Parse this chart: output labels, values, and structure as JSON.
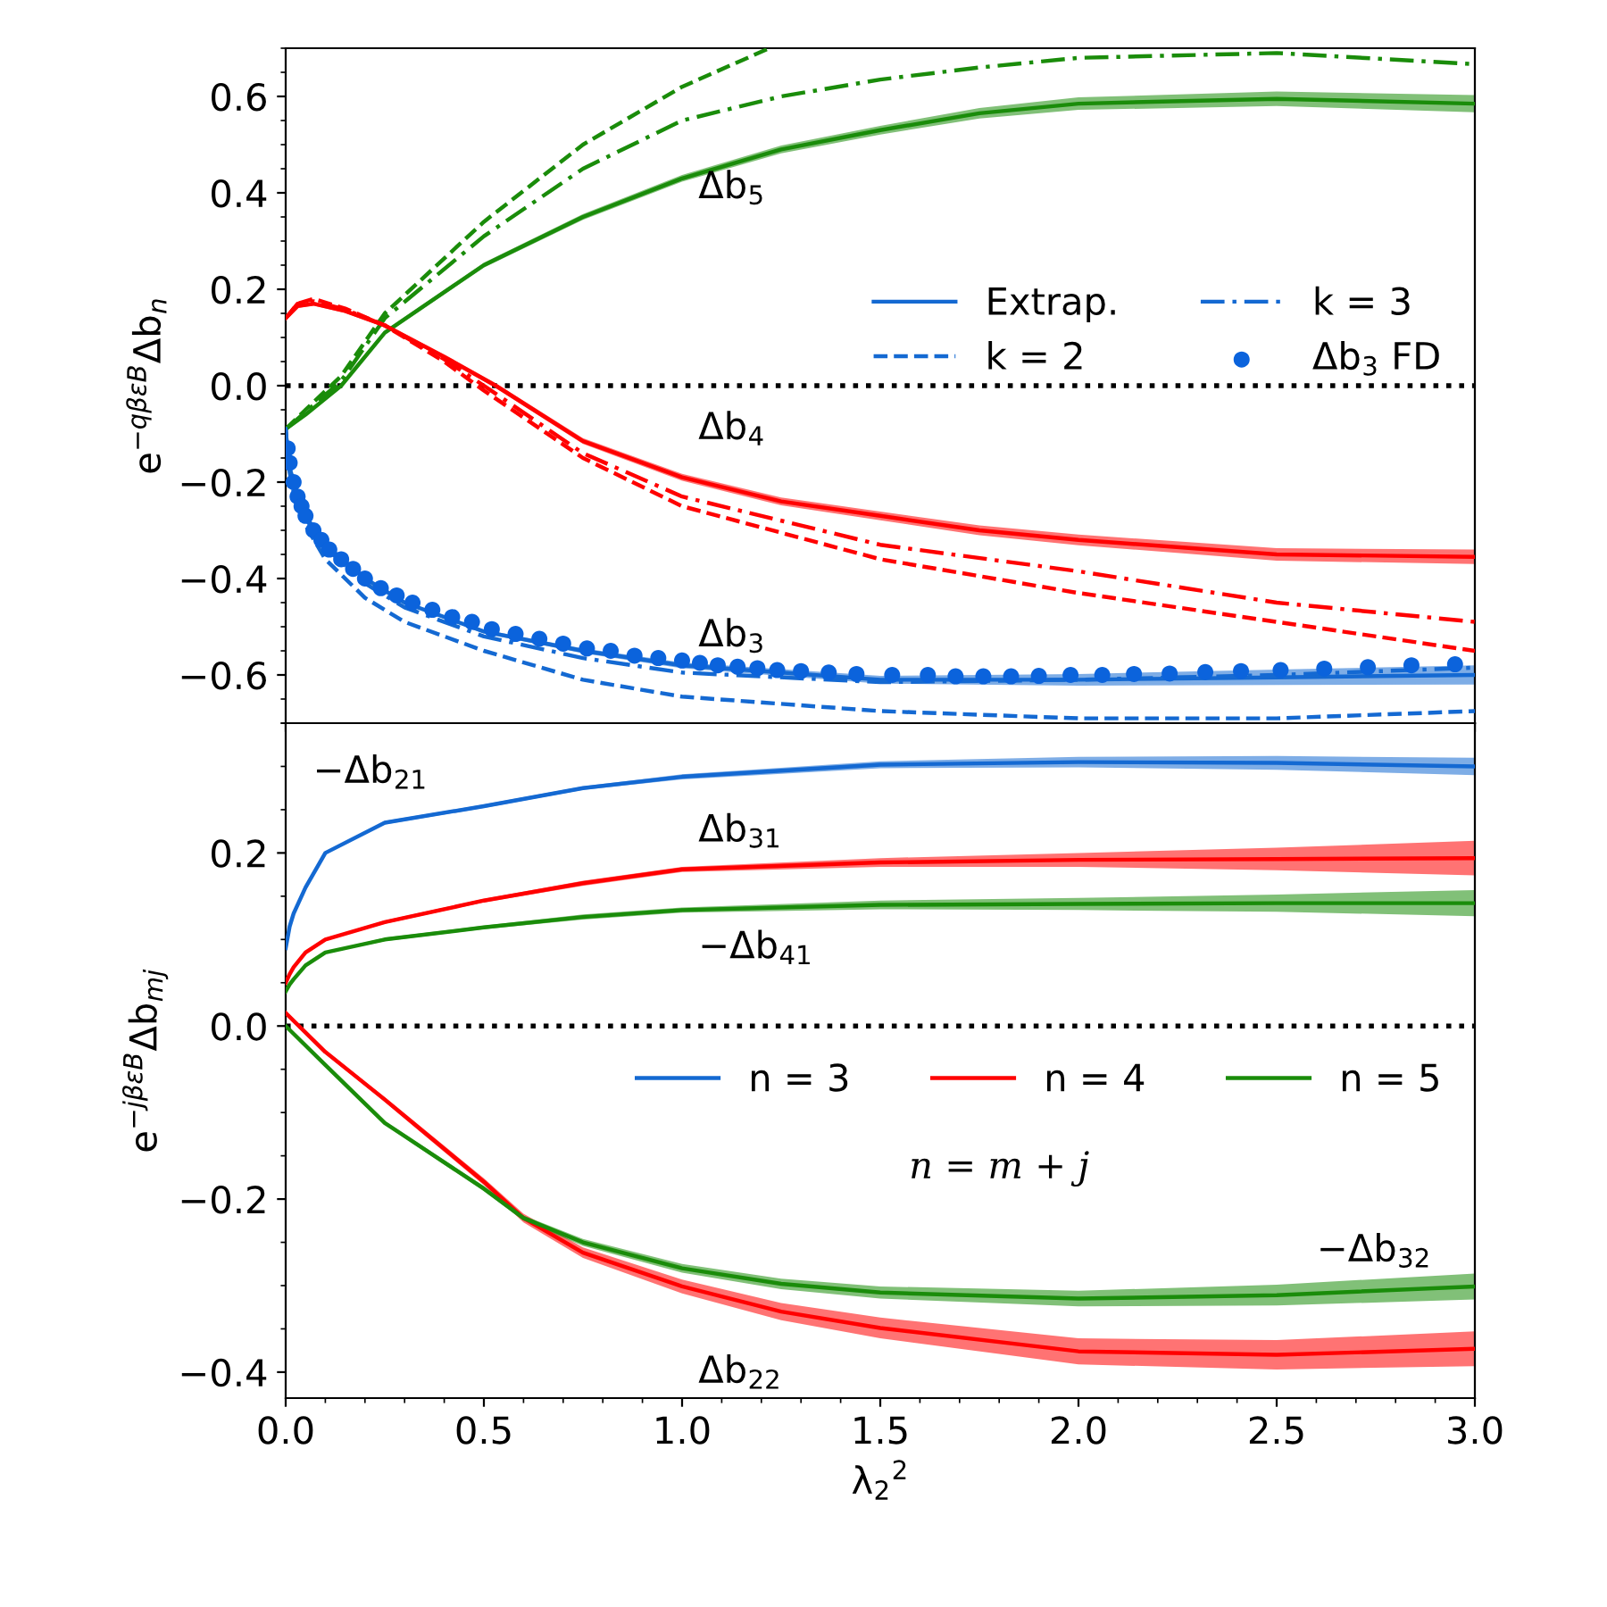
{
  "chart_data": [
    {
      "type": "line",
      "ylabel": "e$^{−qβεB}$Δb$_{n}$",
      "xlim": [
        0,
        3
      ],
      "xticks": [
        0,
        0.5,
        1,
        1.5,
        2,
        2.5,
        3
      ],
      "ylim": [
        -0.7,
        0.7
      ],
      "yticks": [
        {
          "value": -0.6,
          "label": "−0.6"
        },
        {
          "value": -0.4,
          "label": "−0.4"
        },
        {
          "value": -0.2,
          "label": "−0.2"
        },
        {
          "value": 0,
          "label": "0.0"
        },
        {
          "value": 0.2,
          "label": "0.2"
        },
        {
          "value": 0.4,
          "label": "0.4"
        },
        {
          "value": 0.6,
          "label": "0.6"
        }
      ],
      "tick_labels": "y",
      "grid": false,
      "legend": "center right",
      "ref_lines": [
        {
          "axis": "y",
          "value": 0,
          "color": "#000000",
          "line_style": "dotted"
        }
      ],
      "annotations": [
        "Δb$_{5}$",
        "Δb$_{4}$",
        "Δb$_{3}$"
      ],
      "series": [
        {
          "color": "#1a8c0a",
          "line_style": "solid",
          "x": [
            0,
            0.05,
            0.14,
            0.25,
            0.5,
            0.75,
            1.0,
            1.25,
            1.5,
            1.75,
            2.0,
            2.5,
            3.0
          ],
          "values": [
            -0.09,
            -0.06,
            0.0,
            0.11,
            0.25,
            0.35,
            0.43,
            0.49,
            0.53,
            0.565,
            0.585,
            0.595,
            0.585
          ],
          "lower": [
            -0.093,
            -0.063,
            -0.003,
            0.106,
            0.245,
            0.344,
            0.423,
            0.482,
            0.521,
            0.554,
            0.572,
            0.58,
            0.567
          ],
          "upper": [
            -0.087,
            -0.057,
            0.003,
            0.114,
            0.255,
            0.356,
            0.437,
            0.498,
            0.539,
            0.576,
            0.598,
            0.61,
            0.603
          ]
        },
        {
          "color": "#1a8c0a",
          "line_style": "dashed",
          "x": [
            0,
            0.05,
            0.14,
            0.25,
            0.5,
            0.75,
            1.0,
            1.22
          ],
          "values": [
            -0.09,
            -0.05,
            0.02,
            0.15,
            0.34,
            0.5,
            0.62,
            0.7
          ]
        },
        {
          "color": "#1a8c0a",
          "line_style": "dashdot",
          "x": [
            0,
            0.05,
            0.14,
            0.25,
            0.5,
            0.75,
            1.0,
            1.25,
            1.5,
            1.75,
            2.0,
            2.5,
            3.0
          ],
          "values": [
            -0.09,
            -0.055,
            0.01,
            0.14,
            0.31,
            0.45,
            0.55,
            0.6,
            0.635,
            0.66,
            0.68,
            0.69,
            0.667
          ]
        },
        {
          "color": "#ff0000",
          "line_style": "solid",
          "x": [
            0,
            0.03,
            0.07,
            0.15,
            0.25,
            0.4,
            0.53,
            0.75,
            1.0,
            1.25,
            1.5,
            1.75,
            2.0,
            2.5,
            3.0
          ],
          "values": [
            0.14,
            0.165,
            0.17,
            0.155,
            0.125,
            0.06,
            0.0,
            -0.115,
            -0.19,
            -0.24,
            -0.27,
            -0.3,
            -0.32,
            -0.35,
            -0.355
          ],
          "lower": [
            0.136,
            0.161,
            0.166,
            0.151,
            0.121,
            0.055,
            -0.005,
            -0.121,
            -0.197,
            -0.248,
            -0.279,
            -0.31,
            -0.331,
            -0.363,
            -0.37
          ],
          "upper": [
            0.144,
            0.169,
            0.174,
            0.159,
            0.129,
            0.065,
            0.005,
            -0.109,
            -0.183,
            -0.232,
            -0.261,
            -0.29,
            -0.309,
            -0.337,
            -0.34
          ]
        },
        {
          "color": "#ff0000",
          "line_style": "dashed",
          "x": [
            0,
            0.03,
            0.07,
            0.15,
            0.25,
            0.4,
            0.5,
            0.75,
            1.0,
            1.5,
            2.0,
            2.5,
            3.0
          ],
          "values": [
            0.14,
            0.17,
            0.18,
            0.16,
            0.125,
            0.05,
            -0.01,
            -0.15,
            -0.25,
            -0.36,
            -0.43,
            -0.49,
            -0.55
          ]
        },
        {
          "color": "#ff0000",
          "line_style": "dashdot",
          "x": [
            0,
            0.03,
            0.07,
            0.15,
            0.25,
            0.4,
            0.5,
            0.75,
            1.0,
            1.5,
            2.0,
            2.5,
            3.0
          ],
          "values": [
            0.14,
            0.17,
            0.175,
            0.158,
            0.125,
            0.055,
            0.0,
            -0.14,
            -0.23,
            -0.33,
            -0.385,
            -0.45,
            -0.49
          ]
        },
        {
          "name": "Extrap.",
          "color": "#1469d2",
          "line_style": "solid",
          "x": [
            0,
            0.005,
            0.01,
            0.02,
            0.05,
            0.1,
            0.2,
            0.3,
            0.5,
            0.75,
            1.0,
            1.5,
            2.0,
            2.5,
            3.0
          ],
          "values": [
            -0.09,
            -0.14,
            -0.17,
            -0.2,
            -0.27,
            -0.33,
            -0.4,
            -0.45,
            -0.51,
            -0.55,
            -0.58,
            -0.61,
            -0.61,
            -0.605,
            -0.6
          ],
          "lower": [
            -0.092,
            -0.142,
            -0.172,
            -0.202,
            -0.272,
            -0.332,
            -0.403,
            -0.453,
            -0.514,
            -0.555,
            -0.586,
            -0.618,
            -0.622,
            -0.621,
            -0.62
          ],
          "upper": [
            -0.088,
            -0.138,
            -0.168,
            -0.198,
            -0.268,
            -0.328,
            -0.397,
            -0.447,
            -0.506,
            -0.545,
            -0.574,
            -0.602,
            -0.598,
            -0.589,
            -0.58
          ]
        },
        {
          "name": "k = 2",
          "color": "#1469d2",
          "line_style": "dashed",
          "x": [
            0,
            0.005,
            0.01,
            0.02,
            0.05,
            0.1,
            0.2,
            0.3,
            0.5,
            0.75,
            1.0,
            1.5,
            2.0,
            2.5,
            3.0
          ],
          "values": [
            -0.09,
            -0.15,
            -0.18,
            -0.22,
            -0.29,
            -0.36,
            -0.44,
            -0.49,
            -0.55,
            -0.61,
            -0.645,
            -0.675,
            -0.69,
            -0.69,
            -0.675
          ]
        },
        {
          "name": "k = 3",
          "color": "#1469d2",
          "line_style": "dashdot",
          "x": [
            0,
            0.005,
            0.01,
            0.02,
            0.05,
            0.1,
            0.2,
            0.3,
            0.5,
            0.75,
            1.0,
            1.5,
            2.0,
            2.5,
            3.0
          ],
          "values": [
            -0.09,
            -0.14,
            -0.17,
            -0.205,
            -0.275,
            -0.335,
            -0.41,
            -0.46,
            -0.52,
            -0.565,
            -0.595,
            -0.615,
            -0.61,
            -0.6,
            -0.585
          ]
        },
        {
          "name": "Δb$_{3}$ FD",
          "type": "scatter",
          "marker": "circle",
          "color": "#0b63dc",
          "x": [
            0.005,
            0.01,
            0.02,
            0.03,
            0.04,
            0.05,
            0.07,
            0.09,
            0.11,
            0.14,
            0.17,
            0.2,
            0.24,
            0.28,
            0.32,
            0.37,
            0.42,
            0.47,
            0.52,
            0.58,
            0.64,
            0.7,
            0.76,
            0.82,
            0.88,
            0.94,
            1.0,
            1.045,
            1.09,
            1.14,
            1.19,
            1.24,
            1.3,
            1.37,
            1.44,
            1.53,
            1.62,
            1.69,
            1.76,
            1.83,
            1.9,
            1.98,
            2.06,
            2.14,
            2.23,
            2.32,
            2.41,
            2.51,
            2.62,
            2.73,
            2.84,
            2.95
          ],
          "values": [
            -0.13,
            -0.16,
            -0.2,
            -0.23,
            -0.25,
            -0.27,
            -0.3,
            -0.32,
            -0.34,
            -0.36,
            -0.38,
            -0.4,
            -0.42,
            -0.435,
            -0.45,
            -0.465,
            -0.48,
            -0.49,
            -0.505,
            -0.515,
            -0.525,
            -0.535,
            -0.545,
            -0.55,
            -0.56,
            -0.565,
            -0.57,
            -0.575,
            -0.58,
            -0.583,
            -0.586,
            -0.59,
            -0.592,
            -0.595,
            -0.598,
            -0.6,
            -0.6,
            -0.603,
            -0.603,
            -0.603,
            -0.602,
            -0.6,
            -0.6,
            -0.598,
            -0.597,
            -0.594,
            -0.592,
            -0.59,
            -0.587,
            -0.584,
            -0.58,
            -0.578
          ]
        }
      ]
    },
    {
      "type": "line",
      "xlabel": "λ$_{2}$$^{2}$",
      "ylabel": "e$^{−jβεB}$Δb$_{mj}$",
      "xlim": [
        0,
        3
      ],
      "xticks": [
        {
          "value": 0,
          "label": "0.0"
        },
        0.5,
        {
          "value": 1,
          "label": "1.0"
        },
        1.5,
        {
          "value": 2,
          "label": "2.0"
        },
        2.5,
        {
          "value": 3,
          "label": "3.0"
        }
      ],
      "ylim": [
        -0.43,
        0.35
      ],
      "yticks": [
        {
          "value": -0.4,
          "label": "−0.4"
        },
        {
          "value": -0.2,
          "label": "−0.2"
        },
        {
          "value": 0,
          "label": "0.0"
        },
        {
          "value": 0.2,
          "label": "0.2"
        }
      ],
      "grid": false,
      "legend": "center right",
      "ref_lines": [
        {
          "axis": "y",
          "value": 0,
          "color": "#000000",
          "line_style": "dotted"
        }
      ],
      "annotations": [
        "−Δb$_{21}$",
        "Δb$_{31}$",
        "−Δb$_{41}$",
        "−Δb$_{32}$",
        "Δb$_{22}$",
        "n = m + j"
      ],
      "series": [
        {
          "name": "n = 3",
          "color": "#1469d2",
          "line_style": "solid",
          "x": [
            0,
            0.01,
            0.02,
            0.05,
            0.1,
            0.25,
            0.5,
            0.75,
            1.0,
            1.5,
            2.0,
            2.5,
            3.0
          ],
          "values": [
            0.09,
            0.115,
            0.13,
            0.16,
            0.2,
            0.235,
            0.254,
            0.275,
            0.288,
            0.302,
            0.305,
            0.304,
            0.3
          ],
          "lower": [
            0.089,
            0.114,
            0.129,
            0.159,
            0.199,
            0.233,
            0.252,
            0.273,
            0.285,
            0.298,
            0.299,
            0.296,
            0.29
          ],
          "upper": [
            0.091,
            0.116,
            0.131,
            0.161,
            0.201,
            0.237,
            0.256,
            0.277,
            0.291,
            0.306,
            0.311,
            0.312,
            0.31
          ]
        },
        {
          "name": "n = 4",
          "color": "#ff0000",
          "line_style": "solid",
          "x": [
            0,
            0.01,
            0.02,
            0.05,
            0.1,
            0.25,
            0.5,
            0.75,
            1.0,
            1.5,
            2.0,
            2.5,
            3.0
          ],
          "values": [
            0.05,
            0.06,
            0.068,
            0.085,
            0.1,
            0.12,
            0.145,
            0.165,
            0.181,
            0.189,
            0.192,
            0.193,
            0.194
          ],
          "lower": [
            0.049,
            0.059,
            0.067,
            0.084,
            0.099,
            0.118,
            0.143,
            0.162,
            0.178,
            0.184,
            0.184,
            0.18,
            0.174
          ],
          "upper": [
            0.051,
            0.061,
            0.069,
            0.086,
            0.101,
            0.122,
            0.147,
            0.168,
            0.184,
            0.194,
            0.2,
            0.206,
            0.214
          ]
        },
        {
          "name": "n = 5",
          "color": "#1a8c0a",
          "line_style": "solid",
          "x": [
            0,
            0.01,
            0.02,
            0.05,
            0.1,
            0.25,
            0.5,
            0.75,
            1.0,
            1.5,
            2.0,
            2.5,
            3.0
          ],
          "values": [
            0.04,
            0.048,
            0.054,
            0.07,
            0.085,
            0.1,
            0.114,
            0.126,
            0.134,
            0.14,
            0.141,
            0.142,
            0.142
          ],
          "lower": [
            0.039,
            0.047,
            0.053,
            0.069,
            0.084,
            0.098,
            0.112,
            0.123,
            0.131,
            0.135,
            0.134,
            0.132,
            0.127
          ],
          "upper": [
            0.041,
            0.049,
            0.055,
            0.071,
            0.086,
            0.102,
            0.116,
            0.129,
            0.137,
            0.145,
            0.148,
            0.152,
            0.157
          ]
        },
        {
          "color": "#ff0000",
          "line_style": "solid",
          "x": [
            0,
            0.1,
            0.25,
            0.5,
            0.6,
            0.75,
            1.0,
            1.25,
            1.5,
            2.0,
            2.5,
            3.0
          ],
          "values": [
            0.015,
            -0.03,
            -0.085,
            -0.18,
            -0.222,
            -0.262,
            -0.301,
            -0.33,
            -0.349,
            -0.376,
            -0.38,
            -0.373
          ],
          "lower": [
            0.014,
            -0.032,
            -0.088,
            -0.184,
            -0.227,
            -0.268,
            -0.309,
            -0.34,
            -0.361,
            -0.391,
            -0.397,
            -0.393
          ],
          "upper": [
            0.016,
            -0.028,
            -0.082,
            -0.176,
            -0.217,
            -0.256,
            -0.293,
            -0.32,
            -0.337,
            -0.361,
            -0.363,
            -0.353
          ]
        },
        {
          "color": "#1a8c0a",
          "line_style": "solid",
          "x": [
            0,
            0.1,
            0.25,
            0.5,
            0.6,
            0.75,
            1.0,
            1.25,
            1.5,
            2.0,
            2.5,
            3.0
          ],
          "values": [
            0.0,
            -0.045,
            -0.112,
            -0.188,
            -0.222,
            -0.25,
            -0.28,
            -0.298,
            -0.308,
            -0.315,
            -0.311,
            -0.301
          ],
          "lower": [
            -0.001,
            -0.047,
            -0.114,
            -0.191,
            -0.225,
            -0.254,
            -0.285,
            -0.304,
            -0.315,
            -0.324,
            -0.323,
            -0.316
          ],
          "upper": [
            0.001,
            -0.043,
            -0.11,
            -0.185,
            -0.219,
            -0.246,
            -0.275,
            -0.292,
            -0.301,
            -0.306,
            -0.299,
            -0.286
          ]
        }
      ]
    }
  ]
}
